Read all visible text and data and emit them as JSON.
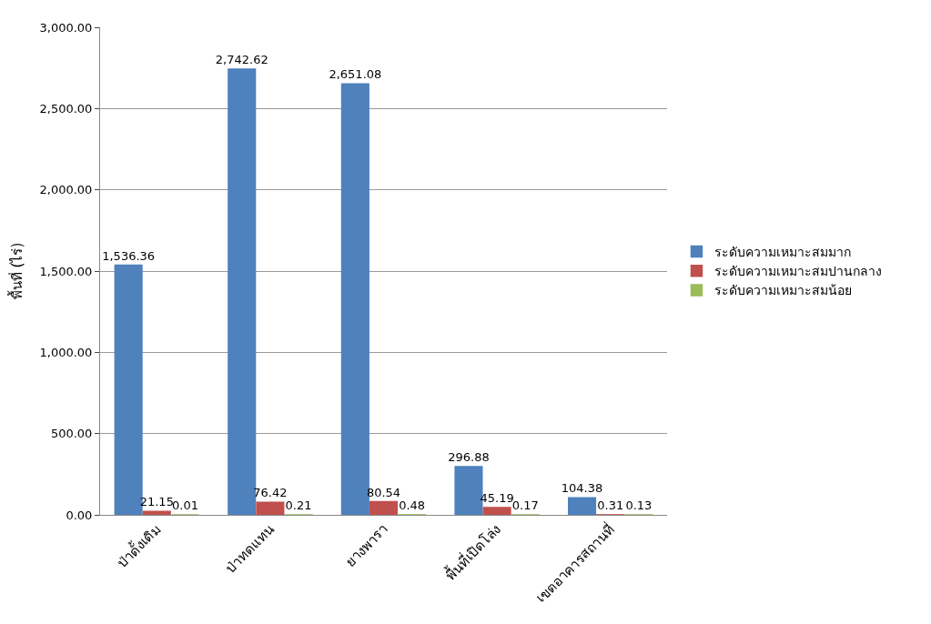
{
  "chart_data": {
    "type": "bar",
    "ylabel": "พื้นที่ (ไร่)",
    "categories": [
      "ป่าดั้งเดิม",
      "ป่าทดแทน",
      "ยางพารา",
      "พื้นที่เปิดโล่ง",
      "เขตอาคารสถานที่"
    ],
    "series": [
      {
        "name": "ระดับความเหมาะสมมาก",
        "color": "#4f81bd",
        "values": [
          1536.36,
          2742.62,
          2651.08,
          296.88,
          104.38
        ],
        "value_labels": [
          "1,536.36",
          "2,742.62",
          "2,651.08",
          "296.88",
          "104.38"
        ]
      },
      {
        "name": "ระดับความเหมาะสมปานกลาง",
        "color": "#c0504d",
        "values": [
          21.15,
          76.42,
          80.54,
          45.19,
          0.31
        ],
        "value_labels": [
          "21.15",
          "76.42",
          "80.54",
          "45.19",
          "0.31"
        ]
      },
      {
        "name": "ระดับความเหมาะสมน้อย",
        "color": "#9bbb59",
        "values": [
          0.01,
          0.21,
          0.48,
          0.17,
          0.13
        ],
        "value_labels": [
          "0.01",
          "0.21",
          "0.48",
          "0.17",
          "0.13"
        ]
      }
    ],
    "ylim": [
      0,
      3000
    ],
    "yticks": [
      {
        "value": 0,
        "label": "0.00"
      },
      {
        "value": 500,
        "label": "500.00"
      },
      {
        "value": 1000,
        "label": "1,000.00"
      },
      {
        "value": 1500,
        "label": "1,500.00"
      },
      {
        "value": 2000,
        "label": "2,000.00"
      },
      {
        "value": 2500,
        "label": "2,500.00"
      },
      {
        "value": 3000,
        "label": "3,000.00"
      }
    ],
    "grid": "y",
    "legend": "right"
  }
}
